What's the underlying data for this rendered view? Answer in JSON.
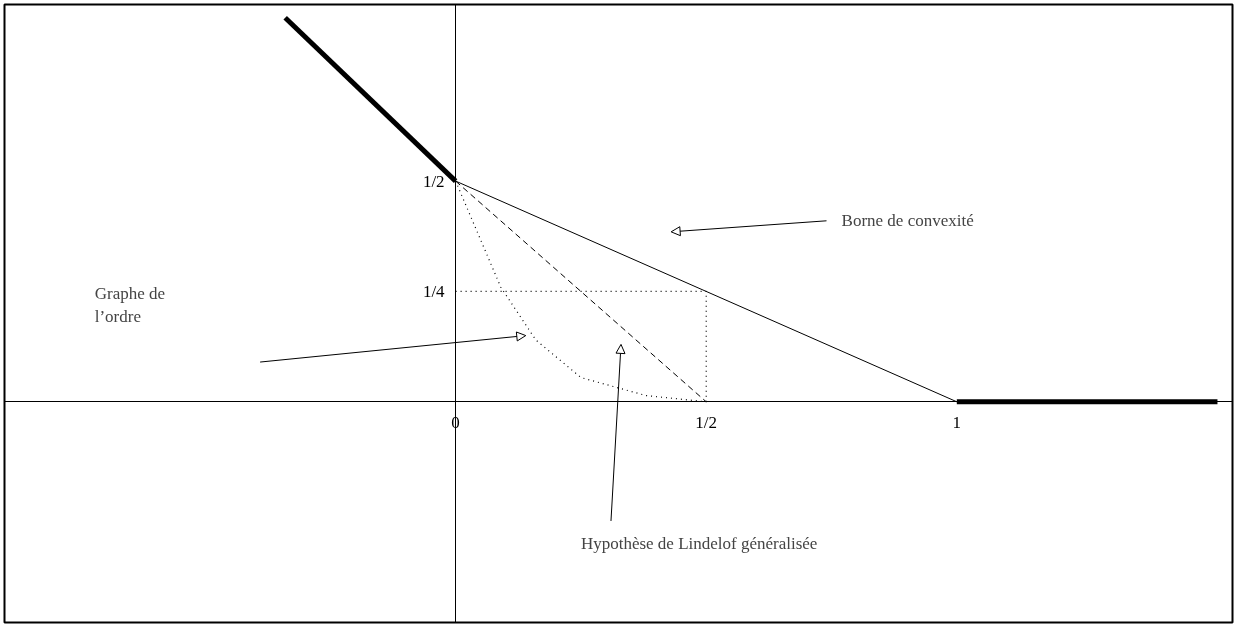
{
  "chart_data": {
    "type": "line",
    "xlim": [
      -0.9,
      1.55
    ],
    "ylim": [
      -0.5,
      0.9
    ],
    "xticks": [
      0,
      {
        "value": 0.5,
        "label": "1/2"
      },
      1
    ],
    "yticks": [
      {
        "value": 0.25,
        "label": "1/4"
      },
      {
        "value": 0.5,
        "label": "1/2"
      }
    ],
    "grid": false,
    "marker": "none",
    "series": [
      {
        "color": "#000000",
        "x": [
          -0.34,
          0
        ],
        "values": [
          0.87,
          0.5
        ],
        "line_style": "solid"
      },
      {
        "color": "#000000",
        "x": [
          1,
          1.52
        ],
        "values": [
          0,
          0
        ],
        "line_style": "solid"
      },
      {
        "color": "#000000",
        "x": [
          0,
          1
        ],
        "values": [
          0.5,
          0
        ],
        "line_style": "solid"
      },
      {
        "color": "#000000",
        "x": [
          0,
          0.5
        ],
        "values": [
          0.5,
          0
        ],
        "line_style": "dashed"
      },
      {
        "color": "#000000",
        "x": [
          0,
          0.09,
          0.16,
          0.25,
          0.38,
          0.5
        ],
        "values": [
          0.5,
          0.26,
          0.14,
          0.055,
          0.014,
          0
        ],
        "line_style": "dotted"
      },
      {
        "color": "#000000",
        "x": [
          0,
          0.5,
          0.5
        ],
        "values": [
          0.25,
          0.25,
          0
        ],
        "line_style": "dotted"
      }
    ],
    "annotations": [
      "Borne de convexité",
      "Graphe de\nl’ordre",
      "Hypothèse de Lindelof généralisée"
    ]
  }
}
